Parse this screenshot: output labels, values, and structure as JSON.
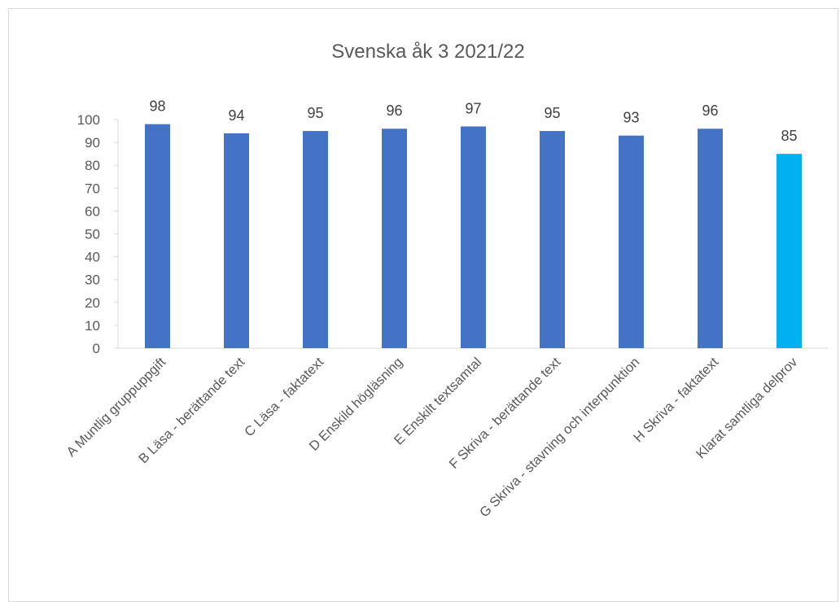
{
  "chart_data": {
    "type": "bar",
    "title": "Svenska åk 3 2021/22",
    "xlabel": "",
    "ylabel": "",
    "categories": [
      "A Muntlig gruppuppgift",
      "B Läsa - berättande text",
      "C Läsa - faktatext",
      "D Enskild högläsning",
      "E Enskilt textsamtal",
      "F Skriva - berättande text",
      "G Skriva - stavning och interpunktion",
      "H Skriva - faktatext",
      "Klarat samtliga delprov"
    ],
    "values": [
      98,
      94,
      95,
      96,
      97,
      95,
      93,
      96,
      85
    ],
    "data_labels": [
      "98",
      "94",
      "95",
      "96",
      "97",
      "95",
      "93",
      "96",
      "85"
    ],
    "bar_colors": [
      "#4472C4",
      "#4472C4",
      "#4472C4",
      "#4472C4",
      "#4472C4",
      "#4472C4",
      "#4472C4",
      "#4472C4",
      "#00B0F0"
    ],
    "ylim": [
      0,
      100
    ],
    "yticks": [
      0,
      10,
      20,
      30,
      40,
      50,
      60,
      70,
      80,
      90,
      100
    ],
    "ytick_labels": [
      "0",
      "10",
      "20",
      "30",
      "40",
      "50",
      "60",
      "70",
      "80",
      "90",
      "100"
    ],
    "grid": false,
    "legend": "none",
    "colors": {
      "primary_bar": "#4472C4",
      "highlight_bar": "#00B0F0",
      "axis_line": "#d9d9d9",
      "text": "#595959"
    }
  }
}
